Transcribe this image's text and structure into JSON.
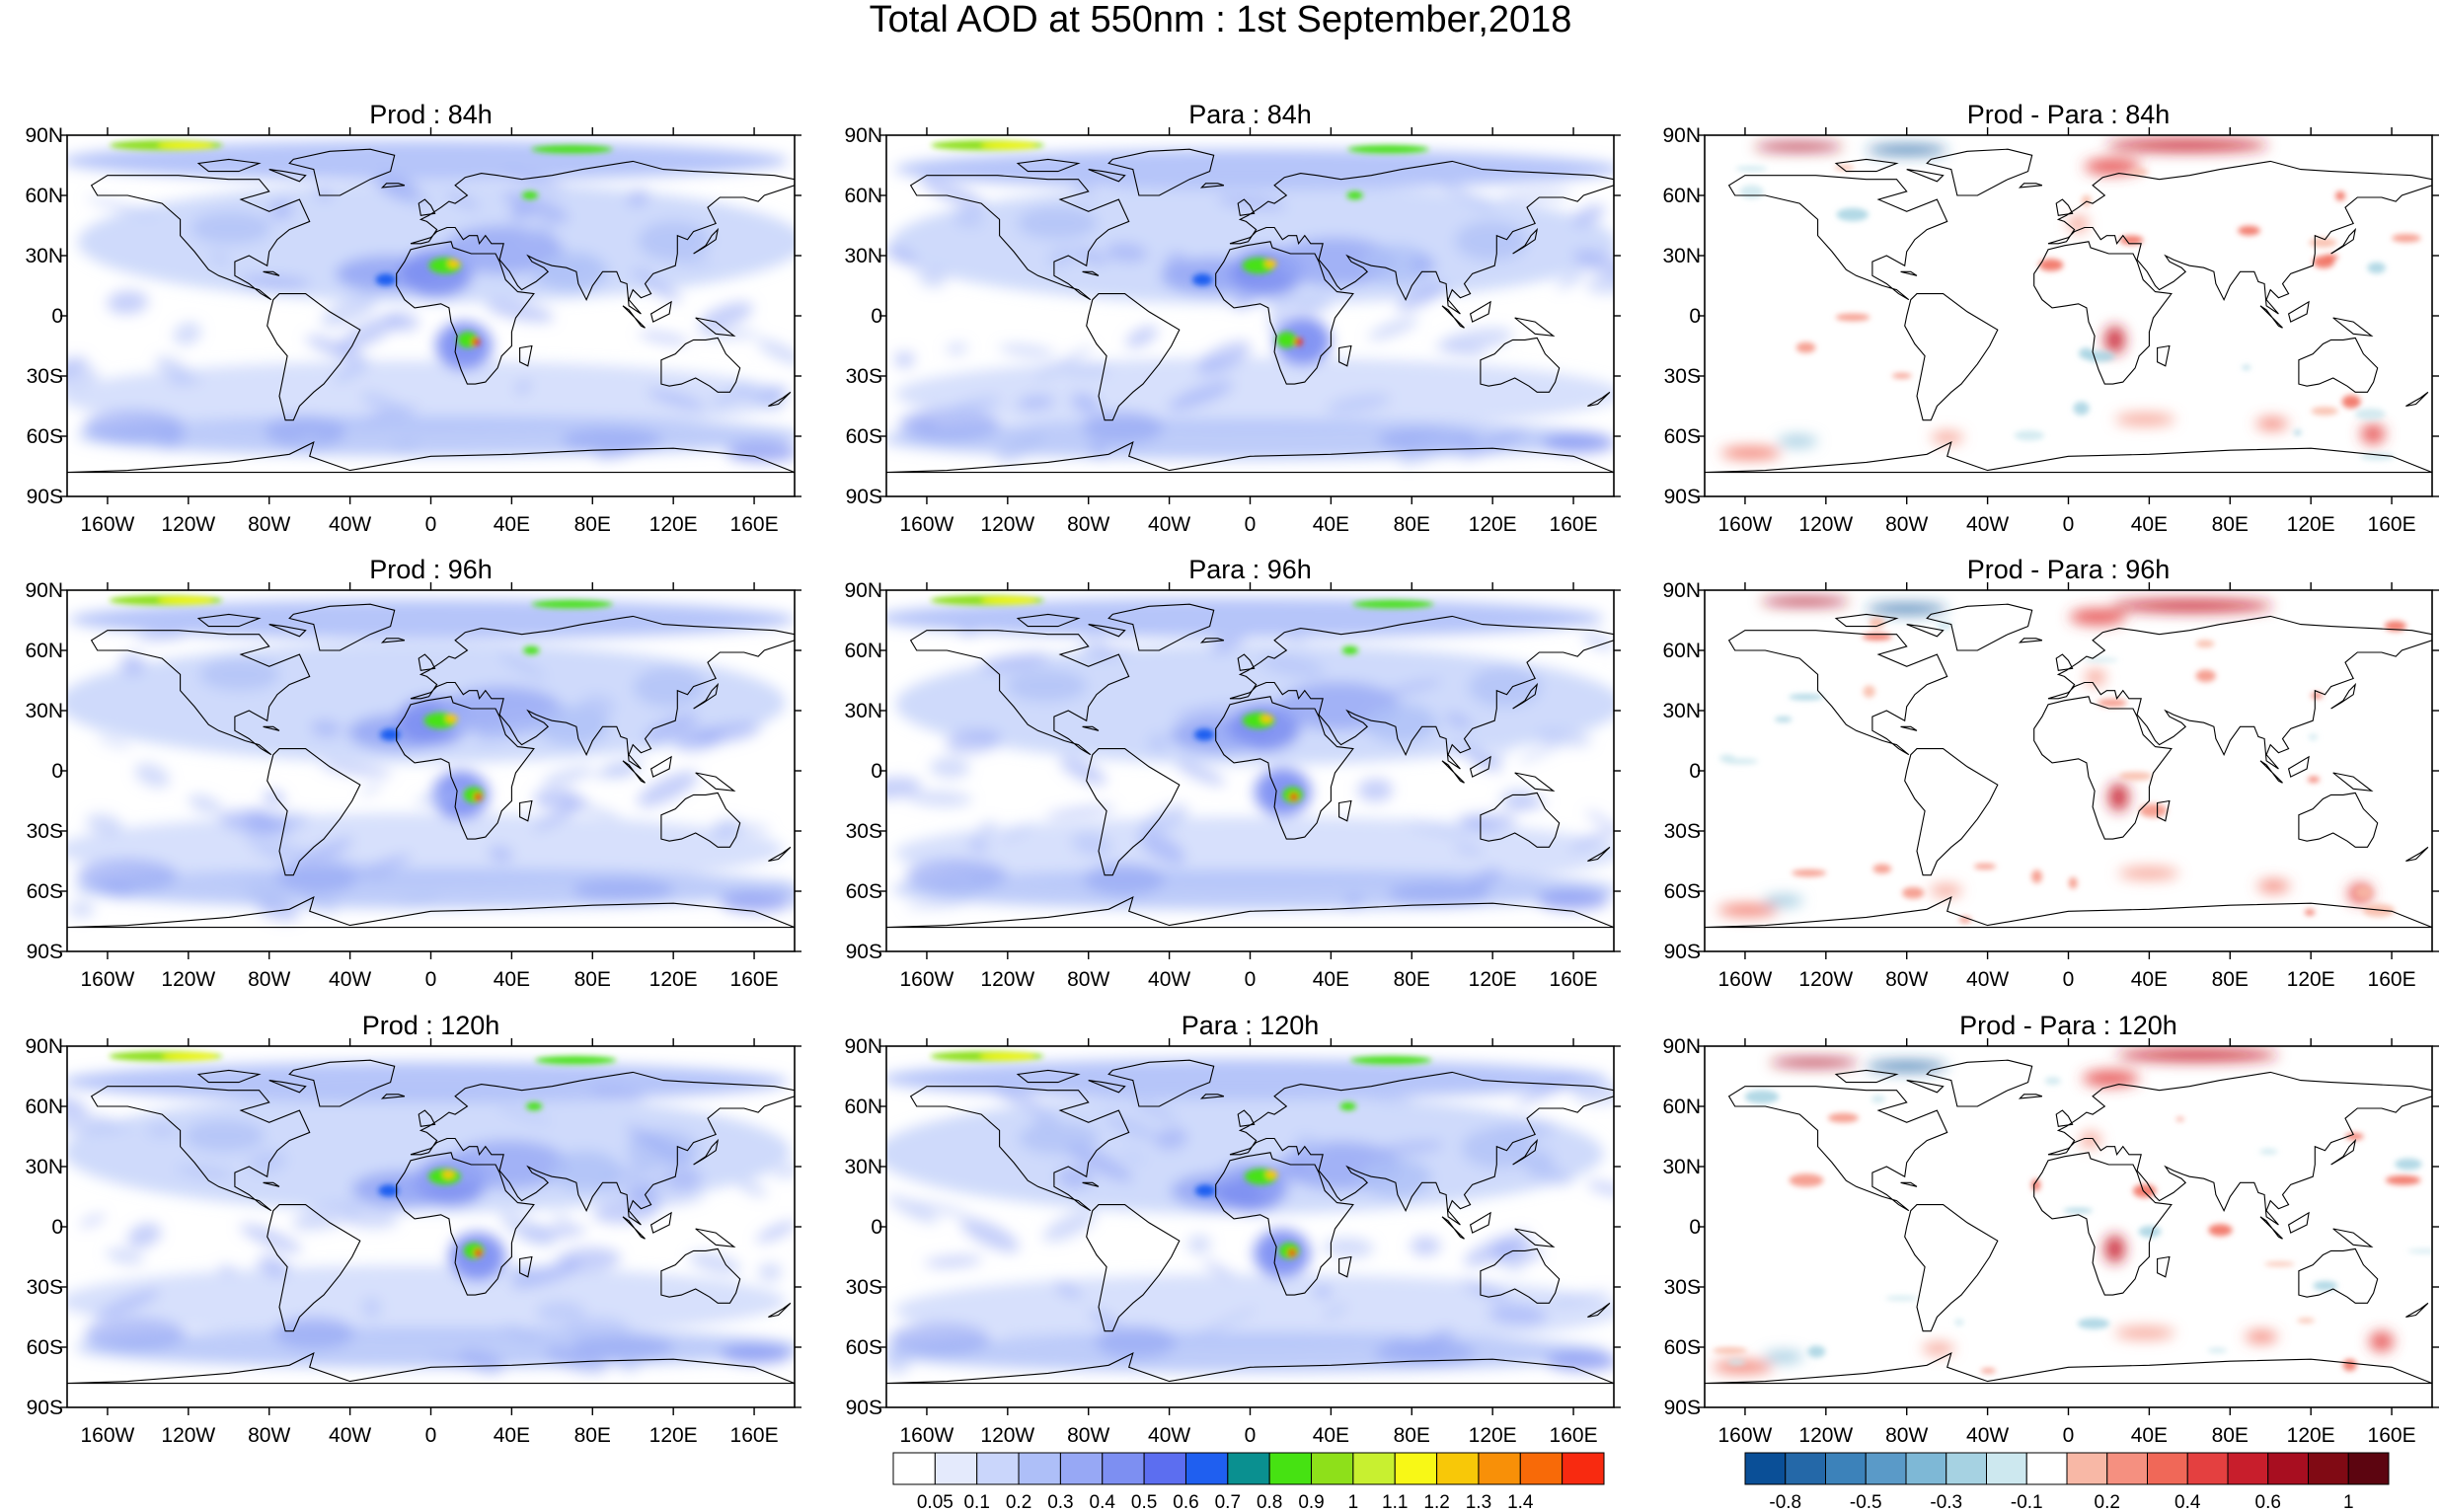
{
  "title": "Total AOD at 550nm : 1st September,2018",
  "panels": [
    {
      "title": "Prod : 84h",
      "kind": "aod"
    },
    {
      "title": "Para : 84h",
      "kind": "aod"
    },
    {
      "title": "Prod - Para : 84h",
      "kind": "diff"
    },
    {
      "title": "Prod : 96h",
      "kind": "aod"
    },
    {
      "title": "Para : 96h",
      "kind": "aod"
    },
    {
      "title": "Prod - Para : 96h",
      "kind": "diff"
    },
    {
      "title": "Prod : 120h",
      "kind": "aod"
    },
    {
      "title": "Para : 120h",
      "kind": "aod"
    },
    {
      "title": "Prod - Para : 120h",
      "kind": "diff"
    }
  ],
  "lat_ticks": [
    "90N",
    "60N",
    "30N",
    "0",
    "30S",
    "60S",
    "90S"
  ],
  "lon_ticks": [
    "160W",
    "120W",
    "80W",
    "40W",
    "0",
    "40E",
    "80E",
    "120E",
    "160E"
  ],
  "lon_values": [
    -160,
    -120,
    -80,
    -40,
    0,
    40,
    80,
    120,
    160
  ],
  "colorbar_aod": {
    "labels": [
      "0.05",
      "0.1",
      "0.2",
      "0.3",
      "0.4",
      "0.5",
      "0.6",
      "0.7",
      "0.8",
      "0.9",
      "1",
      "1.1",
      "1.2",
      "1.3",
      "1.4"
    ],
    "colors": [
      "#ffffff",
      "#e4eafc",
      "#cad6fb",
      "#aebff8",
      "#97a8f5",
      "#7d8ff2",
      "#5c6ef0",
      "#1f5ff0",
      "#0a9090",
      "#46e212",
      "#8ee01a",
      "#c8f030",
      "#f8f816",
      "#f8c808",
      "#f89008",
      "#f86a08",
      "#f82a10"
    ]
  },
  "colorbar_diff": {
    "labels": [
      "-0.8",
      "-0.5",
      "-0.3",
      "-0.1",
      "0.2",
      "0.4",
      "0.6",
      "1"
    ],
    "colors": [
      "#0a4f97",
      "#2468a8",
      "#3c82ba",
      "#5a9ac8",
      "#7eb8d6",
      "#a6d2e2",
      "#cde8ef",
      "#ffffff",
      "#f8b8a6",
      "#f59080",
      "#f06858",
      "#e44040",
      "#c81e2c",
      "#a80e20",
      "#800a14",
      "#5c0510"
    ]
  }
}
